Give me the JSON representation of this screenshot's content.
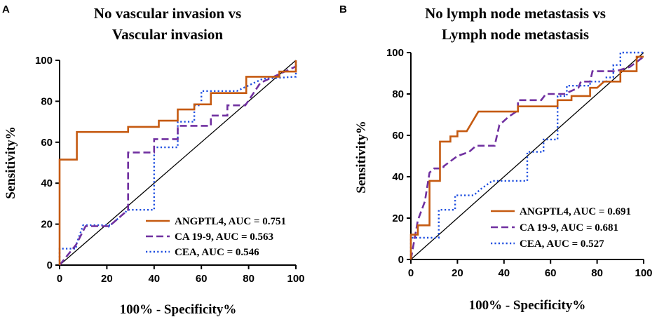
{
  "colors": {
    "angptl4": "#c55a11",
    "ca199": "#7030a0",
    "cea": "#1f4fe0",
    "diagonal": "#000000",
    "axis": "#000000"
  },
  "chart_data": [
    {
      "type": "line",
      "panel": "A",
      "title_lines": [
        "No vascular invasion vs",
        "Vascular invasion"
      ],
      "xlabel": "100% - Specificity%",
      "ylabel": "Sensitivity%",
      "xlim": [
        0,
        100
      ],
      "ylim": [
        0,
        100
      ],
      "xticks": [
        0,
        20,
        40,
        60,
        80,
        100
      ],
      "yticks": [
        0,
        20,
        40,
        60,
        80,
        100
      ],
      "legend_position": "bottom-right",
      "reference_line": true,
      "series": [
        {
          "key": "angptl4",
          "name": "ANGPTL4, AUC = 0.751",
          "style": "solid",
          "points": [
            [
              0,
              0
            ],
            [
              0,
              51.5
            ],
            [
              7.3,
              51.5
            ],
            [
              7.3,
              65
            ],
            [
              29,
              65
            ],
            [
              29,
              67.5
            ],
            [
              42,
              67.5
            ],
            [
              42,
              70.5
            ],
            [
              50,
              70.5
            ],
            [
              50,
              76
            ],
            [
              57,
              76
            ],
            [
              57,
              78.5
            ],
            [
              64,
              78.5
            ],
            [
              64,
              84
            ],
            [
              79,
              84
            ],
            [
              79,
              92
            ],
            [
              93,
              92
            ],
            [
              93,
              94.5
            ],
            [
              100,
              94.5
            ],
            [
              100,
              100
            ]
          ]
        },
        {
          "key": "ca199",
          "name": "CA 19-9, AUC = 0.563",
          "style": "dashed",
          "points": [
            [
              0,
              0
            ],
            [
              7,
              10
            ],
            [
              11,
              19
            ],
            [
              21,
              19
            ],
            [
              29,
              27
            ],
            [
              29,
              55
            ],
            [
              40,
              55
            ],
            [
              40,
              61.5
            ],
            [
              50,
              61.5
            ],
            [
              50,
              68
            ],
            [
              64,
              68
            ],
            [
              64,
              73
            ],
            [
              71,
              73
            ],
            [
              71,
              78
            ],
            [
              78.6,
              78
            ],
            [
              85,
              89
            ],
            [
              100,
              97
            ],
            [
              100,
              100
            ]
          ]
        },
        {
          "key": "cea",
          "name": "CEA, AUC = 0.546",
          "style": "dotted",
          "points": [
            [
              0,
              0
            ],
            [
              0,
              8
            ],
            [
              7,
              8
            ],
            [
              7,
              10
            ],
            [
              10,
              19.5
            ],
            [
              21,
              19.5
            ],
            [
              21,
              19
            ],
            [
              29,
              27
            ],
            [
              40,
              27
            ],
            [
              40,
              57.5
            ],
            [
              50,
              57.5
            ],
            [
              50,
              70
            ],
            [
              57,
              70
            ],
            [
              57,
              78
            ],
            [
              60,
              78
            ],
            [
              60,
              85
            ],
            [
              75,
              85
            ],
            [
              86,
              91
            ],
            [
              100,
              92
            ],
            [
              100,
              100
            ]
          ]
        }
      ]
    },
    {
      "type": "line",
      "panel": "B",
      "title_lines": [
        "No lymph node metastasis vs",
        "Lymph node metastasis"
      ],
      "xlabel": "100% - Specificity%",
      "ylabel": "Sensitivity%",
      "xlim": [
        0,
        100
      ],
      "ylim": [
        0,
        100
      ],
      "xticks": [
        0,
        20,
        40,
        60,
        80,
        100
      ],
      "yticks": [
        0,
        20,
        40,
        60,
        80,
        100
      ],
      "legend_position": "bottom-right",
      "reference_line": true,
      "series": [
        {
          "key": "angptl4",
          "name": "ANGPTL4, AUC = 0.691",
          "style": "solid",
          "points": [
            [
              0,
              0
            ],
            [
              0,
              12
            ],
            [
              3,
              12
            ],
            [
              3,
              16.5
            ],
            [
              8,
              16.5
            ],
            [
              8,
              38
            ],
            [
              12.5,
              38
            ],
            [
              12.5,
              57
            ],
            [
              17,
              57
            ],
            [
              17,
              59.5
            ],
            [
              20,
              59.5
            ],
            [
              20,
              62
            ],
            [
              24,
              62
            ],
            [
              29,
              71.5
            ],
            [
              46,
              71.5
            ],
            [
              46,
              74
            ],
            [
              63,
              74
            ],
            [
              63,
              77
            ],
            [
              69,
              77
            ],
            [
              69,
              79
            ],
            [
              77,
              79
            ],
            [
              77,
              83
            ],
            [
              80,
              83
            ],
            [
              83,
              86
            ],
            [
              90,
              86
            ],
            [
              90,
              91
            ],
            [
              97,
              91
            ],
            [
              97,
              98
            ],
            [
              100,
              98
            ]
          ]
        },
        {
          "key": "ca199",
          "name": "CA 19-9, AUC = 0.681",
          "style": "dashed",
          "points": [
            [
              0,
              0
            ],
            [
              3,
              19
            ],
            [
              6,
              28
            ],
            [
              8,
              42
            ],
            [
              10,
              44
            ],
            [
              14,
              44
            ],
            [
              14,
              45
            ],
            [
              20,
              50
            ],
            [
              25,
              52
            ],
            [
              28,
              55
            ],
            [
              36,
              55
            ],
            [
              38,
              65
            ],
            [
              42,
              69
            ],
            [
              46,
              72
            ],
            [
              46,
              77
            ],
            [
              56,
              77
            ],
            [
              58,
              80
            ],
            [
              66,
              80
            ],
            [
              72,
              83
            ],
            [
              73,
              86
            ],
            [
              77,
              86
            ],
            [
              78,
              91
            ],
            [
              88,
              91
            ],
            [
              94,
              93
            ],
            [
              100,
              98
            ]
          ]
        },
        {
          "key": "cea",
          "name": "CEA, AUC = 0.527",
          "style": "dotted",
          "points": [
            [
              0,
              0
            ],
            [
              0,
              10.5
            ],
            [
              12,
              10.5
            ],
            [
              12,
              24
            ],
            [
              19,
              24
            ],
            [
              19,
              31
            ],
            [
              27,
              31
            ],
            [
              30,
              34
            ],
            [
              35,
              38
            ],
            [
              50,
              38
            ],
            [
              50,
              52
            ],
            [
              57,
              52
            ],
            [
              57,
              58
            ],
            [
              63,
              58
            ],
            [
              63,
              79
            ],
            [
              67,
              79
            ],
            [
              67,
              84
            ],
            [
              77,
              84
            ],
            [
              77,
              86
            ],
            [
              84,
              86
            ],
            [
              84,
              88
            ],
            [
              87,
              88
            ],
            [
              87,
              94
            ],
            [
              90,
              94
            ],
            [
              90,
              100
            ],
            [
              100,
              100
            ]
          ]
        }
      ]
    }
  ]
}
